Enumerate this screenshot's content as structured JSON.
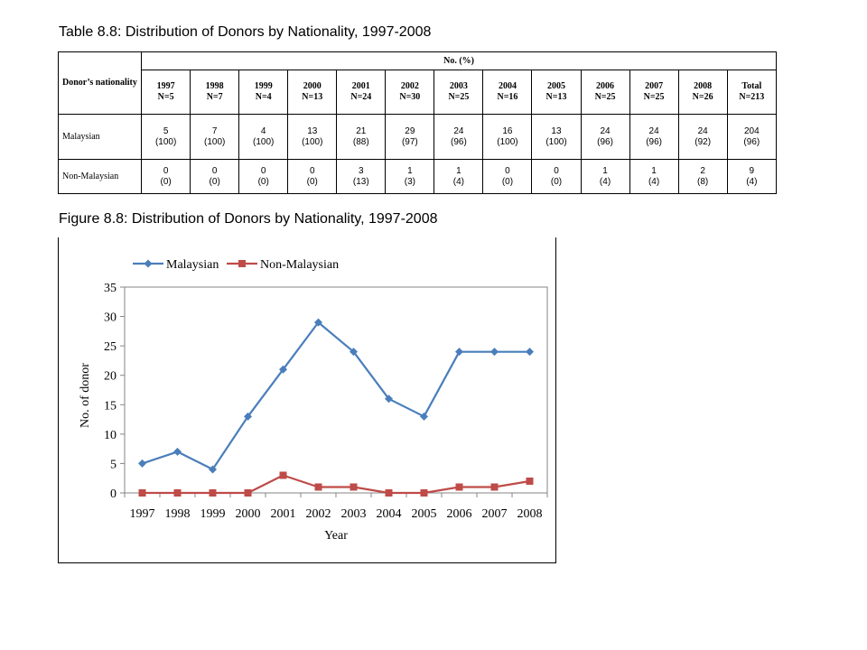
{
  "table": {
    "caption": "Table 8.8: Distribution of Donors by Nationality, 1997-2008",
    "corner_header": "Donor’s nationality",
    "group_header": "No. (%)",
    "columns": [
      {
        "year": "1997",
        "n": "N=5"
      },
      {
        "year": "1998",
        "n": "N=7"
      },
      {
        "year": "1999",
        "n": "N=4"
      },
      {
        "year": "2000",
        "n": "N=13"
      },
      {
        "year": "2001",
        "n": "N=24"
      },
      {
        "year": "2002",
        "n": "N=30"
      },
      {
        "year": "2003",
        "n": "N=25"
      },
      {
        "year": "2004",
        "n": "N=16"
      },
      {
        "year": "2005",
        "n": "N=13"
      },
      {
        "year": "2006",
        "n": "N=25"
      },
      {
        "year": "2007",
        "n": "N=25"
      },
      {
        "year": "2008",
        "n": "N=26"
      },
      {
        "year": "Total",
        "n": "N=213"
      }
    ],
    "rows": [
      {
        "label": "Malaysian",
        "cells": [
          {
            "count": "5",
            "pct": "(100)"
          },
          {
            "count": "7",
            "pct": "(100)"
          },
          {
            "count": "4",
            "pct": "(100)"
          },
          {
            "count": "13",
            "pct": "(100)"
          },
          {
            "count": "21",
            "pct": "(88)"
          },
          {
            "count": "29",
            "pct": "(97)"
          },
          {
            "count": "24",
            "pct": "(96)"
          },
          {
            "count": "16",
            "pct": "(100)"
          },
          {
            "count": "13",
            "pct": "(100)"
          },
          {
            "count": "24",
            "pct": "(96)"
          },
          {
            "count": "24",
            "pct": "(96)"
          },
          {
            "count": "24",
            "pct": "(92)"
          },
          {
            "count": "204",
            "pct": "(96)"
          }
        ]
      },
      {
        "label": "Non-Malaysian",
        "cells": [
          {
            "count": "0",
            "pct": "(0)"
          },
          {
            "count": "0",
            "pct": "(0)"
          },
          {
            "count": "0",
            "pct": "(0)"
          },
          {
            "count": "0",
            "pct": "(0)"
          },
          {
            "count": "3",
            "pct": "(13)"
          },
          {
            "count": "1",
            "pct": "(3)"
          },
          {
            "count": "1",
            "pct": "(4)"
          },
          {
            "count": "0",
            "pct": "(0)"
          },
          {
            "count": "0",
            "pct": "(0)"
          },
          {
            "count": "1",
            "pct": "(4)"
          },
          {
            "count": "1",
            "pct": "(4)"
          },
          {
            "count": "2",
            "pct": "(8)"
          },
          {
            "count": "9",
            "pct": "(4)"
          }
        ]
      }
    ]
  },
  "figure": {
    "caption": "Figure 8.8: Distribution of Donors by Nationality, 1997-2008"
  },
  "chart_data": {
    "type": "line",
    "title": "",
    "xlabel": "Year",
    "ylabel": "No. of donor",
    "x": [
      "1997",
      "1998",
      "1999",
      "2000",
      "2001",
      "2002",
      "2003",
      "2004",
      "2005",
      "2006",
      "2007",
      "2008"
    ],
    "ylim": [
      0,
      35
    ],
    "yticks": [
      0,
      5,
      10,
      15,
      20,
      25,
      30,
      35
    ],
    "grid": false,
    "legend_position": "top",
    "series": [
      {
        "name": "Malaysian",
        "color": "#4a7ebb",
        "marker": "diamond",
        "values": [
          5,
          7,
          4,
          13,
          21,
          29,
          24,
          16,
          13,
          24,
          24,
          24
        ]
      },
      {
        "name": "Non-Malaysian",
        "color": "#be4b48",
        "marker": "square",
        "values": [
          0,
          0,
          0,
          0,
          3,
          1,
          1,
          0,
          0,
          1,
          1,
          2
        ]
      }
    ]
  }
}
